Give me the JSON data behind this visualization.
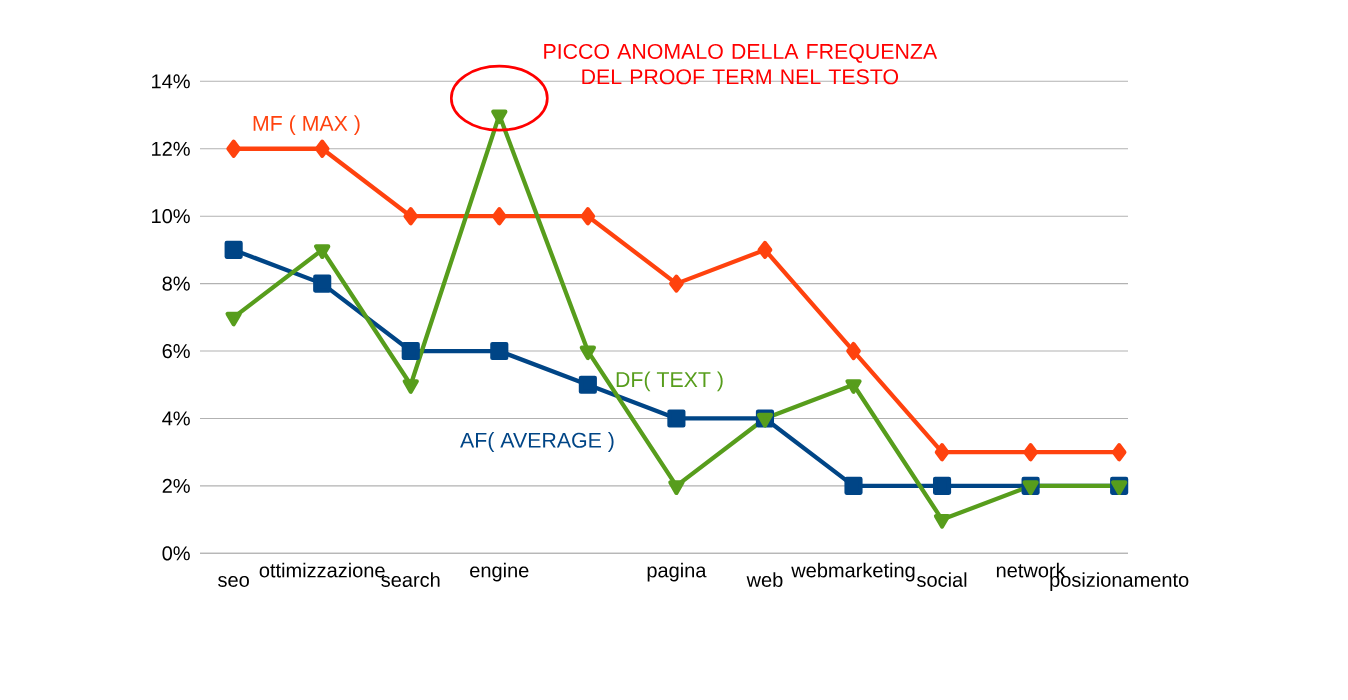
{
  "chart_data": {
    "type": "line",
    "categories": [
      "seo",
      "ottimizzazione",
      "search",
      "engine",
      null,
      "pagina",
      "web",
      "webmarketing",
      "social",
      "network",
      "posizionamento"
    ],
    "series": [
      {
        "name": "MF ( MAX )",
        "color": "#ff420e",
        "marker": "diamond",
        "values": [
          12,
          12,
          10,
          10,
          10,
          8,
          9,
          6,
          3,
          3,
          3
        ]
      },
      {
        "name": "AF( AVERAGE )",
        "color": "#004586",
        "marker": "square",
        "values": [
          9,
          8,
          6,
          6,
          5,
          4,
          4,
          2,
          2,
          2,
          2
        ]
      },
      {
        "name": "DF( TEXT )",
        "color": "#579d1c",
        "marker": "triangle",
        "values": [
          7,
          9,
          5,
          13,
          6,
          2,
          4,
          5,
          1,
          2,
          2
        ]
      }
    ],
    "ylim": [
      0,
      14
    ],
    "yticks": [
      {
        "value": 0,
        "label": "0%"
      },
      {
        "value": 2,
        "label": "2%"
      },
      {
        "value": 4,
        "label": "4%"
      },
      {
        "value": 6,
        "label": "6%"
      },
      {
        "value": 8,
        "label": "8%"
      },
      {
        "value": 10,
        "label": "10%"
      },
      {
        "value": 12,
        "label": "12%"
      },
      {
        "value": 14,
        "label": "14%"
      }
    ],
    "grid": "y",
    "annotations": [
      {
        "text": "PICCO ANOMALO DELLA FREQUENZA DEL PROOF TERM NEL TESTO",
        "x": "engine",
        "y": 13
      }
    ]
  }
}
